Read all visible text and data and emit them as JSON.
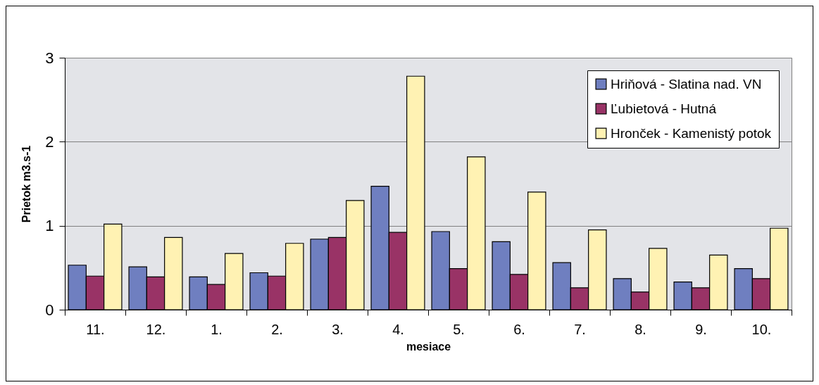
{
  "chart_data": {
    "type": "bar",
    "xlabel": "mesiace",
    "ylabel": "Prietok m3.s-1",
    "categories": [
      "11.",
      "12.",
      "1.",
      "2.",
      "3.",
      "4.",
      "5.",
      "6.",
      "7.",
      "8.",
      "9.",
      "10."
    ],
    "series": [
      {
        "name": "Hriňová - Slatina nad. VN",
        "color": "#6f7fc0",
        "values": [
          0.53,
          0.51,
          0.39,
          0.44,
          0.84,
          1.47,
          0.93,
          0.81,
          0.56,
          0.37,
          0.33,
          0.49
        ]
      },
      {
        "name": "Ľubietová - Hutná",
        "color": "#993366",
        "values": [
          0.4,
          0.39,
          0.3,
          0.4,
          0.86,
          0.92,
          0.49,
          0.42,
          0.26,
          0.21,
          0.26,
          0.37
        ]
      },
      {
        "name": "Hronček - Kamenistý potok",
        "color": "#fff2b3",
        "values": [
          1.02,
          0.86,
          0.67,
          0.79,
          1.3,
          2.78,
          1.82,
          1.4,
          0.95,
          0.73,
          0.65,
          0.97
        ]
      }
    ],
    "ylim": [
      0,
      3
    ],
    "yticks": [
      0,
      1,
      2,
      3
    ],
    "grid": "y",
    "legend": "top right"
  }
}
